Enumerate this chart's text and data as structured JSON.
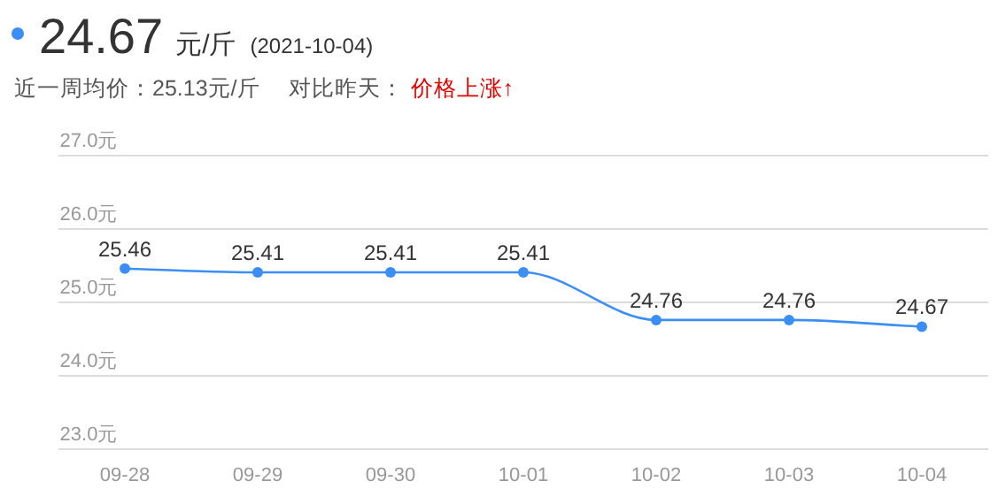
{
  "chart_data": {
    "type": "line",
    "title": "24.67",
    "subtitle": "元/斤",
    "annotations": [
      "(2021-10-04)",
      "近一周均价：25.13元/斤",
      "对比昨天：",
      "价格上涨↑"
    ],
    "categories": [
      "09-28",
      "09-29",
      "09-30",
      "10-01",
      "10-02",
      "10-03",
      "10-04"
    ],
    "series": [
      {
        "color": "#3b8ef5",
        "values": [
          25.46,
          25.41,
          25.41,
          25.41,
          24.76,
          24.76,
          24.67
        ]
      }
    ],
    "ylim": [
      23,
      27
    ],
    "yticks": [
      {
        "value": 23,
        "label": "23.0元"
      },
      {
        "value": 24,
        "label": "24.0元"
      },
      {
        "value": 25,
        "label": "25.0元"
      },
      {
        "value": 26,
        "label": "26.0元"
      },
      {
        "value": 27,
        "label": "27.0元"
      }
    ],
    "grid": "y",
    "marker": "circle",
    "line_style": "solid",
    "data_labels": true
  }
}
